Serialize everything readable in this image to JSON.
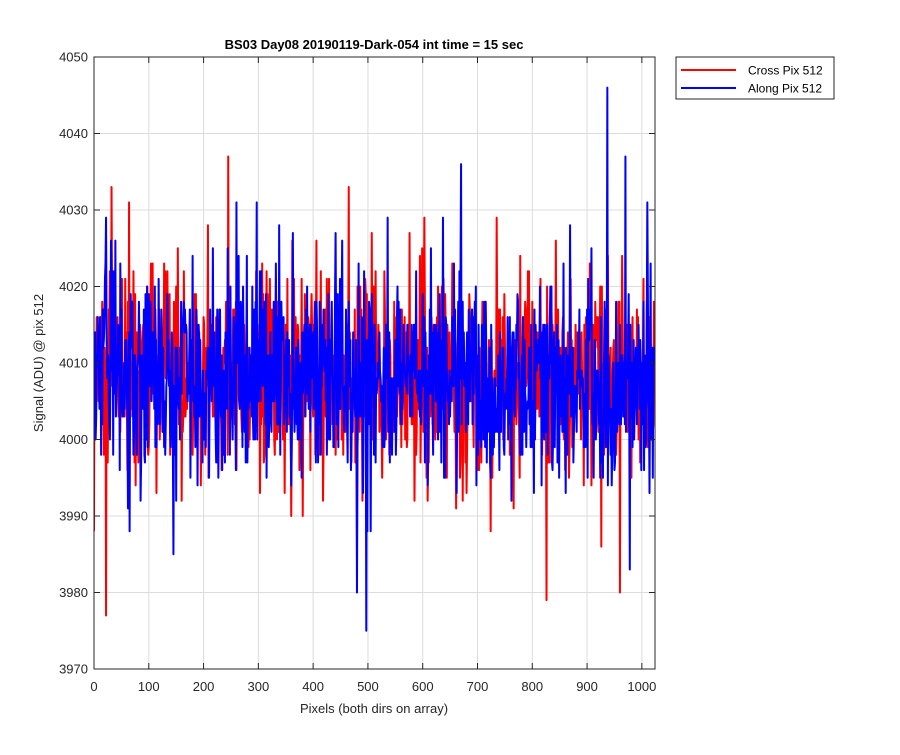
{
  "chart_data": {
    "type": "line",
    "title": "BS03 Day08 20190119-Dark-054 int time = 15 sec",
    "xlabel": "Pixels (both dirs on array)",
    "ylabel": "Signal (ADU) @ pix 512",
    "xlim": [
      0,
      1024
    ],
    "ylim": [
      3970,
      4050
    ],
    "xticks": [
      0,
      100,
      200,
      300,
      400,
      500,
      600,
      700,
      800,
      900,
      1000
    ],
    "yticks": [
      3970,
      3980,
      3990,
      4000,
      4010,
      4020,
      4030,
      4040,
      4050
    ],
    "grid": true,
    "legend_position": "outside top-right",
    "series": [
      {
        "name": "Cross Pix 512",
        "color": "#ff0000",
        "noise": {
          "n": 1024,
          "mean": 4008,
          "sd": 7,
          "min": 3977,
          "max": 4037,
          "seed": 12345
        },
        "points": [
          [
            0,
            3988
          ],
          [
            22,
            3977
          ],
          [
            32,
            4033
          ],
          [
            64,
            4031
          ],
          [
            245,
            4037
          ],
          [
            465,
            4033
          ],
          [
            480,
            3985
          ],
          [
            826,
            3979
          ],
          [
            960,
            3980
          ],
          [
            1010,
            4024
          ]
        ]
      },
      {
        "name": "Along Pix 512",
        "color": "#0000ff",
        "noise": {
          "n": 1024,
          "mean": 4008,
          "sd": 7,
          "min": 3975,
          "max": 4046,
          "seed": 67890
        },
        "points": [
          [
            0,
            4004
          ],
          [
            22,
            4029
          ],
          [
            260,
            4031
          ],
          [
            480,
            3980
          ],
          [
            497,
            3975
          ],
          [
            670,
            4036
          ],
          [
            937,
            4046
          ],
          [
            970,
            4037
          ],
          [
            978,
            3983
          ]
        ]
      }
    ]
  }
}
